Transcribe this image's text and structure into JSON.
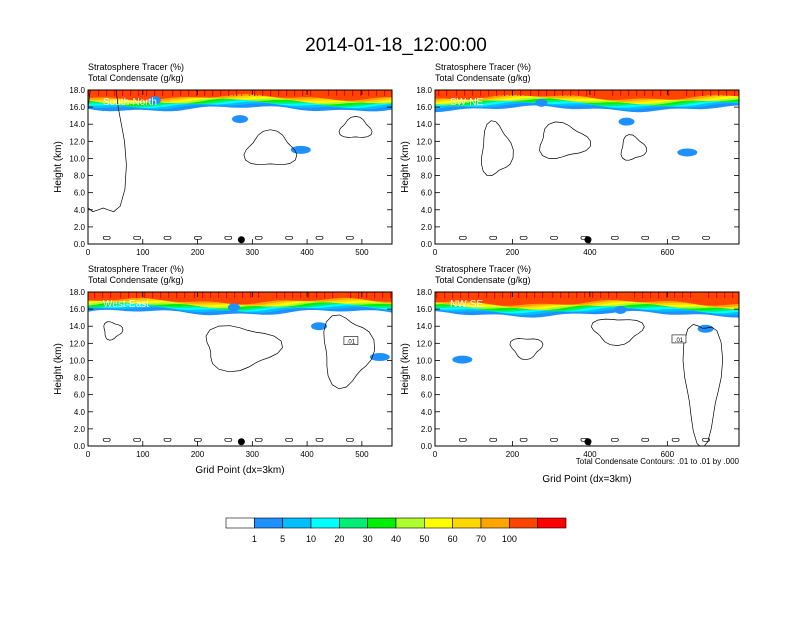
{
  "title": "2014-01-18_12:00:00",
  "header_line1": "Stratosphere Tracer   (%)",
  "header_line2": "Total Condensate   (g/kg)",
  "footnote": "Total Condensate Contours: .01 to .01 by .000",
  "colorbar": {
    "colors": [
      "#ffffff",
      "#1e90ff",
      "#00bfff",
      "#00ffff",
      "#00ee76",
      "#00ee00",
      "#adff2f",
      "#ffff00",
      "#ffd700",
      "#ffa500",
      "#ff4500",
      "#ff0000"
    ],
    "labels": [
      "1",
      "5",
      "10",
      "20",
      "30",
      "40",
      "50",
      "60",
      "70",
      "100"
    ]
  },
  "chart_data": [
    {
      "type": "contour",
      "panel_label": "South-North",
      "ylabel": "Height (km)",
      "xlabel": "",
      "x_ticks": [
        "0",
        "100",
        "200",
        "300",
        "400",
        "500"
      ],
      "x_tick_values": [
        0,
        100,
        200,
        300,
        400,
        500
      ],
      "xlim": [
        0,
        555
      ],
      "y_ticks": [
        "0.0",
        "2.0",
        "4.0",
        "6.0",
        "8.0",
        "10.0",
        "12.0",
        "14.0",
        "16.0",
        "18.0"
      ],
      "ylim": [
        0,
        18
      ],
      "marker_x": 280,
      "tropopause_km": 15.8,
      "contour_labels": []
    },
    {
      "type": "contour",
      "panel_label": "SW-NE",
      "ylabel": "Height (km)",
      "xlabel": "",
      "x_ticks": [
        "0",
        "200",
        "400",
        "600"
      ],
      "x_tick_values": [
        0,
        200,
        400,
        600
      ],
      "xlim": [
        0,
        785
      ],
      "y_ticks": [
        "0.0",
        "2.0",
        "4.0",
        "6.0",
        "8.0",
        "10.0",
        "12.0",
        "14.0",
        "16.0",
        "18.0"
      ],
      "ylim": [
        0,
        18
      ],
      "marker_x": 395,
      "tropopause_km": 15.8,
      "contour_labels": []
    },
    {
      "type": "contour",
      "panel_label": "West-East",
      "ylabel": "Height (km)",
      "xlabel": "Grid Point (dx=3km)",
      "x_ticks": [
        "0",
        "100",
        "200",
        "300",
        "400",
        "500"
      ],
      "x_tick_values": [
        0,
        100,
        200,
        300,
        400,
        500
      ],
      "xlim": [
        0,
        555
      ],
      "y_ticks": [
        "0.0",
        "2.0",
        "4.0",
        "6.0",
        "8.0",
        "10.0",
        "12.0",
        "14.0",
        "16.0",
        "18.0"
      ],
      "ylim": [
        0,
        18
      ],
      "marker_x": 280,
      "tropopause_km": 15.6,
      "contour_labels": [
        {
          "text": ".01",
          "x": 480,
          "y": 12.2
        }
      ]
    },
    {
      "type": "contour",
      "panel_label": "NW-SE",
      "ylabel": "Height (km)",
      "xlabel": "Grid Point (dx=3km)",
      "x_ticks": [
        "0",
        "200",
        "400",
        "600"
      ],
      "x_tick_values": [
        0,
        200,
        400,
        600
      ],
      "xlim": [
        0,
        785
      ],
      "y_ticks": [
        "0.0",
        "2.0",
        "4.0",
        "6.0",
        "8.0",
        "10.0",
        "12.0",
        "14.0",
        "16.0",
        "18.0"
      ],
      "ylim": [
        0,
        18
      ],
      "marker_x": 395,
      "tropopause_km": 15.4,
      "contour_labels": [
        {
          "text": ".01",
          "x": 630,
          "y": 12.4
        }
      ]
    }
  ]
}
